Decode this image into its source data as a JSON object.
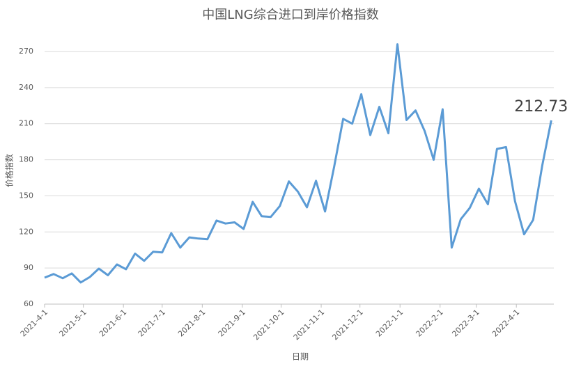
{
  "chart_data": {
    "type": "line",
    "title": "中国LNG综合进口到岸价格指数",
    "x_label": "日期",
    "y_label": "价格指数",
    "x": [
      "2021-4-1",
      "2021-4-8",
      "2021-4-15",
      "2021-4-22",
      "2021-4-29",
      "2021-5-6",
      "2021-5-13",
      "2021-5-20",
      "2021-5-27",
      "2021-6-3",
      "2021-6-10",
      "2021-6-17",
      "2021-6-24",
      "2021-7-1",
      "2021-7-8",
      "2021-7-15",
      "2021-7-22",
      "2021-7-29",
      "2021-8-5",
      "2021-8-12",
      "2021-8-19",
      "2021-8-26",
      "2021-9-2",
      "2021-9-9",
      "2021-9-16",
      "2021-9-23",
      "2021-9-30",
      "2021-10-7",
      "2021-10-14",
      "2021-10-21",
      "2021-10-28",
      "2021-11-4",
      "2021-11-11",
      "2021-11-18",
      "2021-11-25",
      "2021-12-2",
      "2021-12-9",
      "2021-12-16",
      "2021-12-23",
      "2021-12-30",
      "2022-1-6",
      "2022-1-13",
      "2022-1-20",
      "2022-1-27",
      "2022-2-3",
      "2022-2-10",
      "2022-2-17",
      "2022-2-24",
      "2022-3-3",
      "2022-3-10",
      "2022-3-17",
      "2022-3-24",
      "2022-3-31",
      "2022-4-7",
      "2022-4-14",
      "2022-4-21",
      "2022-4-28"
    ],
    "series": [
      {
        "name": "价格指数",
        "color": "#5b9bd5",
        "values": [
          82,
          85,
          81.5,
          85.5,
          78,
          82.5,
          89.5,
          84,
          93,
          89,
          102,
          96,
          103.5,
          103,
          119,
          107,
          115.5,
          114.5,
          114,
          129.5,
          127,
          128,
          122.5,
          145,
          133,
          132.5,
          141.5,
          162,
          153.5,
          140.5,
          162.5,
          137,
          174,
          214,
          210,
          234.5,
          200.5,
          224,
          202,
          276,
          213,
          221,
          204,
          180,
          222,
          107,
          130.5,
          140,
          156,
          143,
          189,
          190.5,
          145.5,
          118,
          130,
          175,
          212.73
        ]
      }
    ],
    "xlim": [
      "2021-4-1",
      "2022-4-30"
    ],
    "xticks": [
      "2021-4-1",
      "2021-5-1",
      "2021-6-1",
      "2021-7-1",
      "2021-8-1",
      "2021-9-1",
      "2021-10-1",
      "2021-11-1",
      "2021-12-1",
      "2022-1-1",
      "2022-2-1",
      "2022-3-1",
      "2022-4-1"
    ],
    "ylim": [
      60,
      270
    ],
    "yticks": [
      60,
      90,
      120,
      150,
      180,
      210,
      240,
      270
    ],
    "grid": true
  }
}
